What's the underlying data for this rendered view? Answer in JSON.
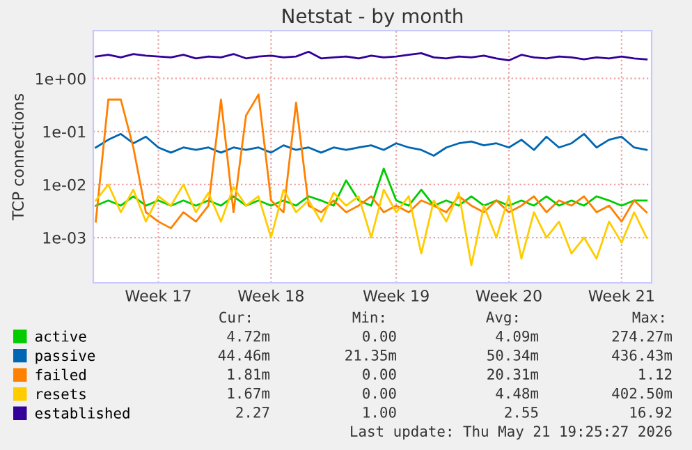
{
  "chart_data": {
    "type": "line",
    "title": "Netstat - by month",
    "ylabel": "TCP connections",
    "log": true,
    "grid": true,
    "legend": "bottom left",
    "ylim": [
      0.00014,
      8
    ],
    "yticks": [
      {
        "value": 0.001,
        "label": "1e-03"
      },
      {
        "value": 0.01,
        "label": "1e-02"
      },
      {
        "value": 0.1,
        "label": "1e-01"
      },
      {
        "value": 1,
        "label": "1e+00"
      }
    ],
    "categories": [
      null,
      null,
      null,
      null,
      null,
      "Week 17",
      null,
      null,
      null,
      null,
      null,
      null,
      null,
      null,
      "Week 18",
      null,
      null,
      null,
      null,
      null,
      null,
      null,
      null,
      null,
      "Week 19",
      null,
      null,
      null,
      null,
      null,
      null,
      null,
      null,
      "Week 20",
      null,
      null,
      null,
      null,
      null,
      null,
      null,
      null,
      "Week 21",
      null,
      null
    ],
    "series": [
      {
        "name": "active",
        "color": "#00cc00",
        "values": [
          0.004,
          0.005,
          0.004,
          0.006,
          0.004,
          0.005,
          0.004,
          0.005,
          0.004,
          0.005,
          0.004,
          0.006,
          0.004,
          0.005,
          0.004,
          0.005,
          0.004,
          0.006,
          0.005,
          0.004,
          0.012,
          0.005,
          0.004,
          0.02,
          0.005,
          0.004,
          0.008,
          0.004,
          0.005,
          0.004,
          0.006,
          0.004,
          0.005,
          0.004,
          0.005,
          0.004,
          0.006,
          0.004,
          0.005,
          0.004,
          0.006,
          0.005,
          0.004,
          0.005,
          0.005
        ]
      },
      {
        "name": "passive",
        "color": "#0066b3",
        "values": [
          0.05,
          0.07,
          0.09,
          0.06,
          0.08,
          0.05,
          0.04,
          0.05,
          0.045,
          0.05,
          0.04,
          0.05,
          0.045,
          0.05,
          0.04,
          0.055,
          0.045,
          0.05,
          0.04,
          0.05,
          0.045,
          0.05,
          0.055,
          0.045,
          0.06,
          0.05,
          0.045,
          0.035,
          0.05,
          0.06,
          0.065,
          0.055,
          0.06,
          0.05,
          0.07,
          0.045,
          0.08,
          0.05,
          0.06,
          0.09,
          0.05,
          0.07,
          0.08,
          0.05,
          0.045
        ]
      },
      {
        "name": "failed",
        "color": "#ff8000",
        "values": [
          0.002,
          0.4,
          0.4,
          0.05,
          0.003,
          0.002,
          0.0015,
          0.003,
          0.002,
          0.004,
          0.4,
          0.003,
          0.2,
          0.5,
          0.005,
          0.003,
          0.35,
          0.004,
          0.003,
          0.005,
          0.003,
          0.004,
          0.006,
          0.003,
          0.004,
          0.003,
          0.005,
          0.004,
          0.003,
          0.006,
          0.004,
          0.003,
          0.005,
          0.003,
          0.004,
          0.006,
          0.003,
          0.005,
          0.004,
          0.006,
          0.003,
          0.004,
          0.002,
          0.005,
          0.003
        ]
      },
      {
        "name": "resets",
        "color": "#ffcc00",
        "values": [
          0.005,
          0.01,
          0.003,
          0.008,
          0.002,
          0.006,
          0.004,
          0.01,
          0.003,
          0.007,
          0.002,
          0.009,
          0.004,
          0.006,
          0.001,
          0.008,
          0.003,
          0.005,
          0.002,
          0.007,
          0.004,
          0.006,
          0.001,
          0.008,
          0.003,
          0.006,
          0.0005,
          0.005,
          0.002,
          0.007,
          0.0003,
          0.004,
          0.001,
          0.006,
          0.0004,
          0.003,
          0.001,
          0.002,
          0.0005,
          0.001,
          0.0004,
          0.002,
          0.0008,
          0.003,
          0.001
        ]
      },
      {
        "name": "established",
        "color": "#330099",
        "values": [
          2.6,
          2.8,
          2.5,
          2.9,
          2.7,
          2.6,
          2.5,
          2.8,
          2.4,
          2.6,
          2.5,
          2.9,
          2.4,
          2.6,
          2.7,
          2.5,
          2.6,
          3.2,
          2.4,
          2.5,
          2.6,
          2.4,
          2.7,
          2.5,
          2.6,
          2.8,
          3.0,
          2.5,
          2.4,
          2.6,
          2.5,
          2.7,
          2.4,
          2.2,
          2.8,
          2.5,
          2.4,
          2.6,
          2.5,
          2.3,
          2.5,
          2.4,
          2.6,
          2.4,
          2.3
        ]
      }
    ],
    "annotations": [
      "Cur:",
      "Min:",
      "Avg:",
      "Max:",
      "4.72m",
      "0.00",
      "4.09m",
      "274.27m",
      "44.46m",
      "21.35m",
      "50.34m",
      "436.43m",
      "1.81m",
      "0.00",
      "20.31m",
      "1.12",
      "1.67m",
      "0.00",
      "4.48m",
      "402.50m",
      "2.27",
      "1.00",
      "2.55",
      "16.92",
      "Last update: Thu May 21 19:25:27 2026"
    ]
  }
}
